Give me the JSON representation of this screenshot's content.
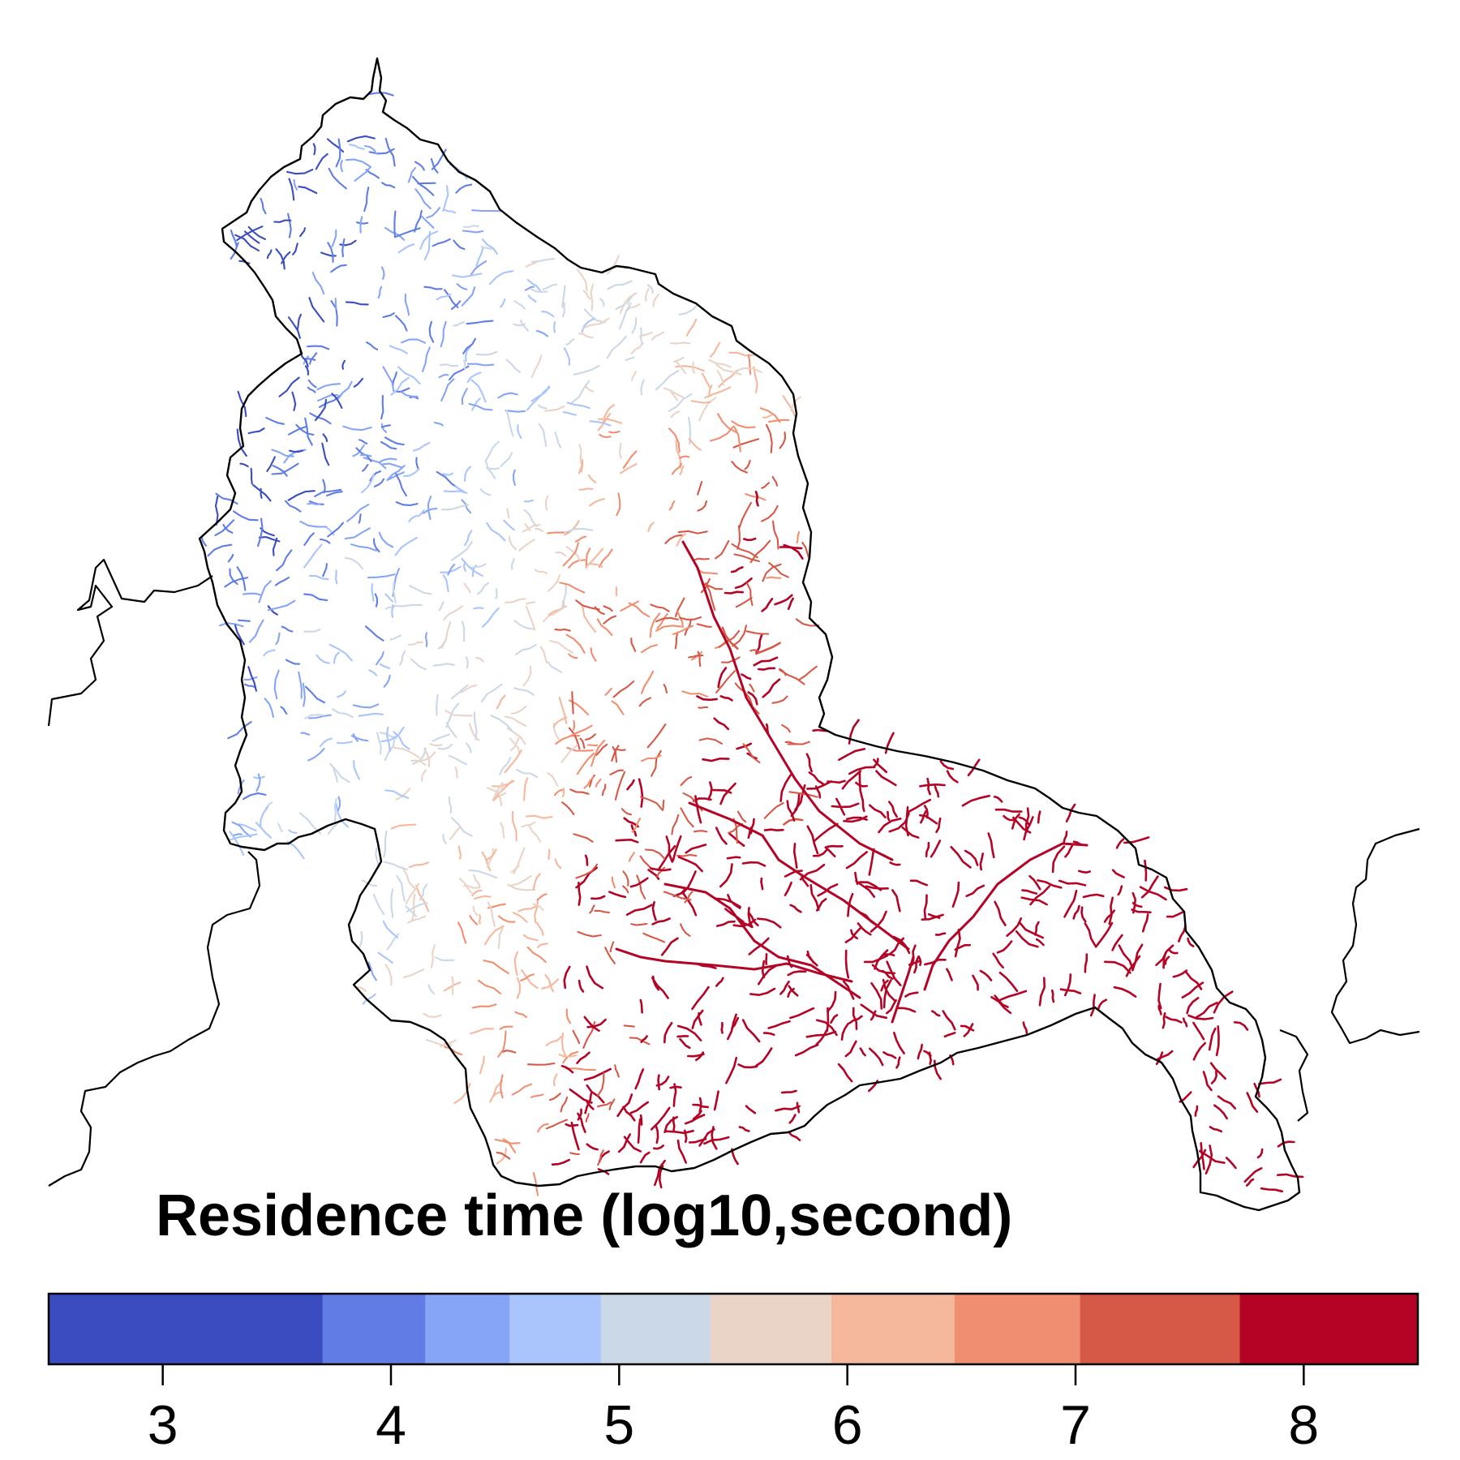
{
  "legend": {
    "title": "Residence time (log10,second)",
    "min": 2.5,
    "max": 8.5,
    "ticks": [
      "3",
      "4",
      "5",
      "6",
      "7",
      "8"
    ],
    "bins": [
      {
        "from": 2.5,
        "to": 3.7,
        "color": "#3b4cc0"
      },
      {
        "from": 3.7,
        "to": 4.15,
        "color": "#5f7de5"
      },
      {
        "from": 4.15,
        "to": 4.52,
        "color": "#86a5f6"
      },
      {
        "from": 4.52,
        "to": 4.92,
        "color": "#aac5fc"
      },
      {
        "from": 4.92,
        "to": 5.4,
        "color": "#cbd8e8"
      },
      {
        "from": 5.4,
        "to": 5.93,
        "color": "#ead4c8"
      },
      {
        "from": 5.93,
        "to": 6.47,
        "color": "#f5b89c"
      },
      {
        "from": 6.47,
        "to": 7.02,
        "color": "#f08f70"
      },
      {
        "from": 7.02,
        "to": 7.72,
        "color": "#d65948"
      },
      {
        "from": 7.72,
        "to": 8.5,
        "color": "#b40426"
      }
    ]
  },
  "map": {
    "boundary_color": "#000000",
    "background": "#ffffff"
  }
}
